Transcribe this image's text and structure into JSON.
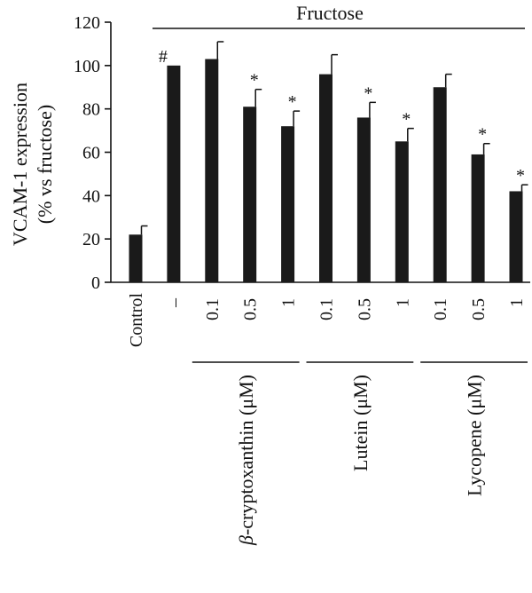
{
  "chart_data": {
    "type": "bar",
    "ylabel_line1": "VCAM-1 expression",
    "ylabel_line2": "(% vs fructose)",
    "ylim": [
      0,
      120
    ],
    "yticks": [
      0,
      20,
      40,
      60,
      80,
      100,
      120
    ],
    "top_bracket_label": "Fructose",
    "categories": [
      "Control",
      "–",
      "0.1",
      "0.5",
      "1",
      "0.1",
      "0.5",
      "1",
      "0.1",
      "0.5",
      "1"
    ],
    "values": [
      22,
      100,
      103,
      81,
      72,
      96,
      76,
      65,
      90,
      59,
      42
    ],
    "errors": [
      4,
      0,
      8,
      8,
      7,
      9,
      7,
      6,
      6,
      5,
      3
    ],
    "markers": [
      "",
      "#",
      "",
      "*",
      "*",
      "",
      "*",
      "*",
      "",
      "*",
      "*"
    ],
    "groups": [
      {
        "prefix": "β",
        "label": "-cryptoxanthin (μM)",
        "start": 2,
        "end": 4
      },
      {
        "prefix": "",
        "label": "Lutein (μM)",
        "start": 5,
        "end": 7
      },
      {
        "prefix": "",
        "label": "Lycopene (μM)",
        "start": 8,
        "end": 10
      }
    ],
    "bar_color": "#1a1a1a"
  }
}
